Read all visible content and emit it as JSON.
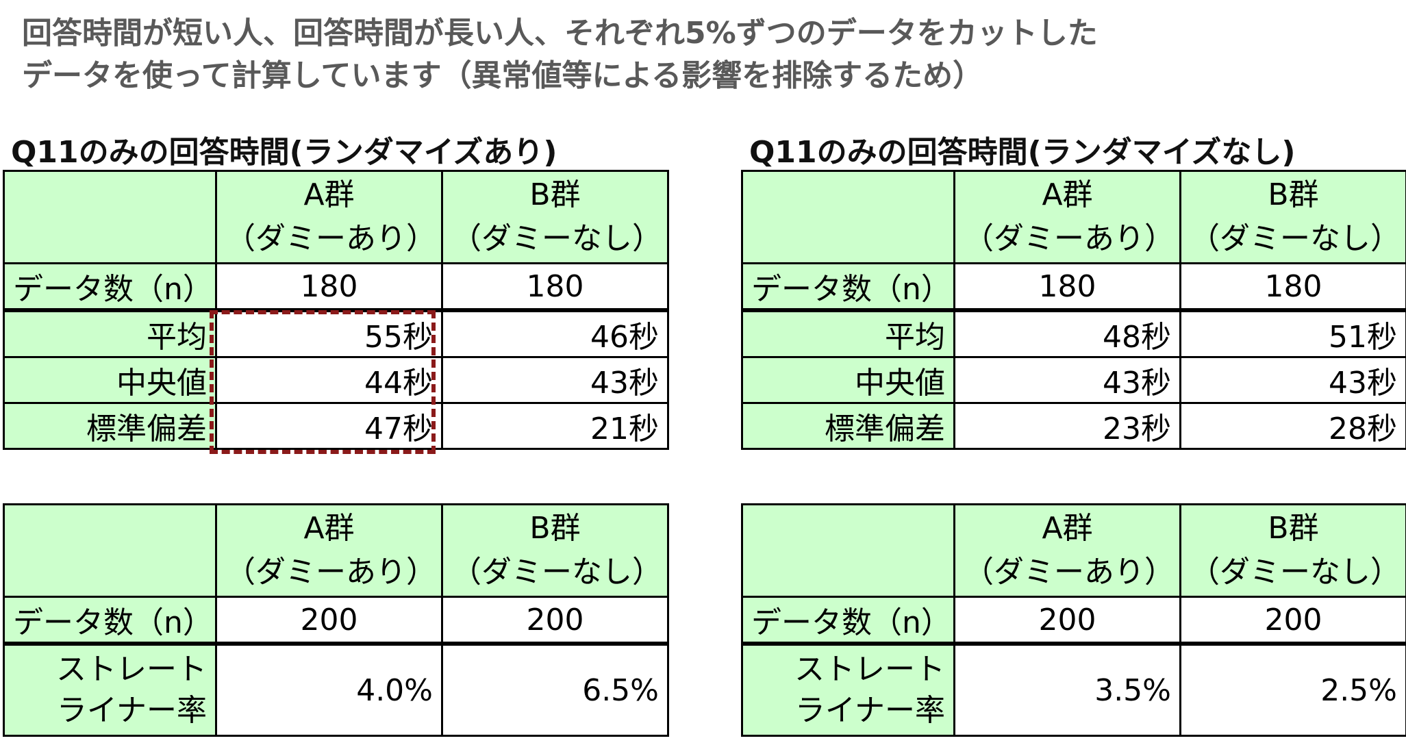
{
  "note": {
    "line1": "回答時間が短い人、回答時間が長い人、それぞれ5%ずつのデータをカットした",
    "line2": "データを使って計算しています（異常値等による影響を排除するため）"
  },
  "col_a": {
    "name": "A群",
    "sub": "（ダミーあり）"
  },
  "col_b": {
    "name": "B群",
    "sub": "（ダミーなし）"
  },
  "labels": {
    "n": "データ数（n）",
    "mean": "平均",
    "median": "中央値",
    "sd": "標準偏差",
    "straight1": "ストレート",
    "straight2": "ライナー率"
  },
  "left": {
    "title": "Q11のみの回答時間(ランダマイズあり)",
    "time": {
      "n_a": "180",
      "n_b": "180",
      "mean_a": "55秒",
      "mean_b": "46秒",
      "median_a": "44秒",
      "median_b": "43秒",
      "sd_a": "47秒",
      "sd_b": "21秒"
    },
    "straight": {
      "n_a": "200",
      "n_b": "200",
      "rate_a": "4.0%",
      "rate_b": "6.5%"
    }
  },
  "right": {
    "title": "Q11のみの回答時間(ランダマイズなし)",
    "time": {
      "n_a": "180",
      "n_b": "180",
      "mean_a": "48秒",
      "mean_b": "51秒",
      "median_a": "43秒",
      "median_b": "43秒",
      "sd_a": "23秒",
      "sd_b": "28秒"
    },
    "straight": {
      "n_a": "200",
      "n_b": "200",
      "rate_a": "3.5%",
      "rate_b": "2.5%"
    }
  },
  "colors": {
    "header_fill": "#ccffcc",
    "highlight_border": "#8b1a1a",
    "note_text": "#595959"
  }
}
